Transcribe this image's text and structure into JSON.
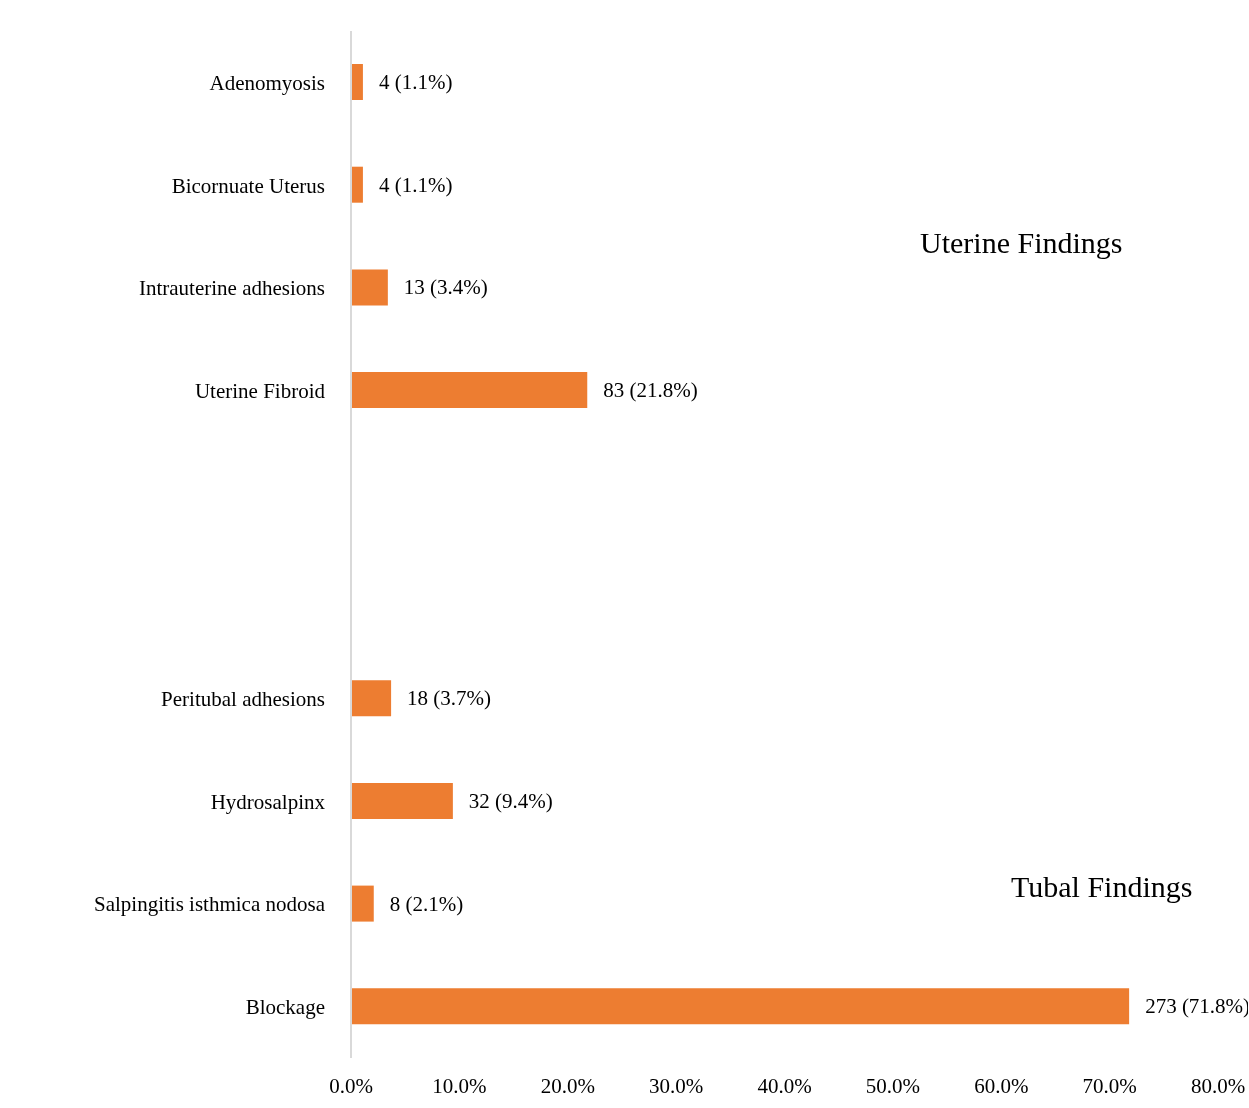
{
  "chart_data": {
    "type": "bar",
    "orientation": "horizontal",
    "categories": [
      "Adenomyosis",
      "Bicornuate Uterus",
      "Intrauterine adhesions",
      "Uterine Fibroid",
      null,
      null,
      "Peritubal adhesions",
      "Hydrosalpinx",
      "Salpingitis isthmica nodosa",
      "Blockage"
    ],
    "values": [
      1.1,
      1.1,
      3.4,
      21.8,
      null,
      null,
      3.7,
      9.4,
      2.1,
      71.8
    ],
    "value_labels": [
      "4 (1.1%)",
      "4 (1.1%)",
      "13 (3.4%)",
      "83 (21.8%)",
      null,
      null,
      "18 (3.7%)",
      "32 (9.4%)",
      "8 (2.1%)",
      "273 (71.8%)"
    ],
    "color": "#ed7d31",
    "xlim": [
      0,
      80
    ],
    "xticks": [
      {
        "value": 0,
        "label": "0.0%"
      },
      {
        "value": 10,
        "label": "10.0%"
      },
      {
        "value": 20,
        "label": "20.0%"
      },
      {
        "value": 30,
        "label": "30.0%"
      },
      {
        "value": 40,
        "label": "40.0%"
      },
      {
        "value": 50,
        "label": "50.0%"
      },
      {
        "value": 60,
        "label": "60.0%"
      },
      {
        "value": 70,
        "label": "70.0%"
      },
      {
        "value": 80,
        "label": "80.0%"
      }
    ],
    "annotations": [
      "Uterine Findings",
      "Tubal Findings"
    ],
    "grid": false
  }
}
